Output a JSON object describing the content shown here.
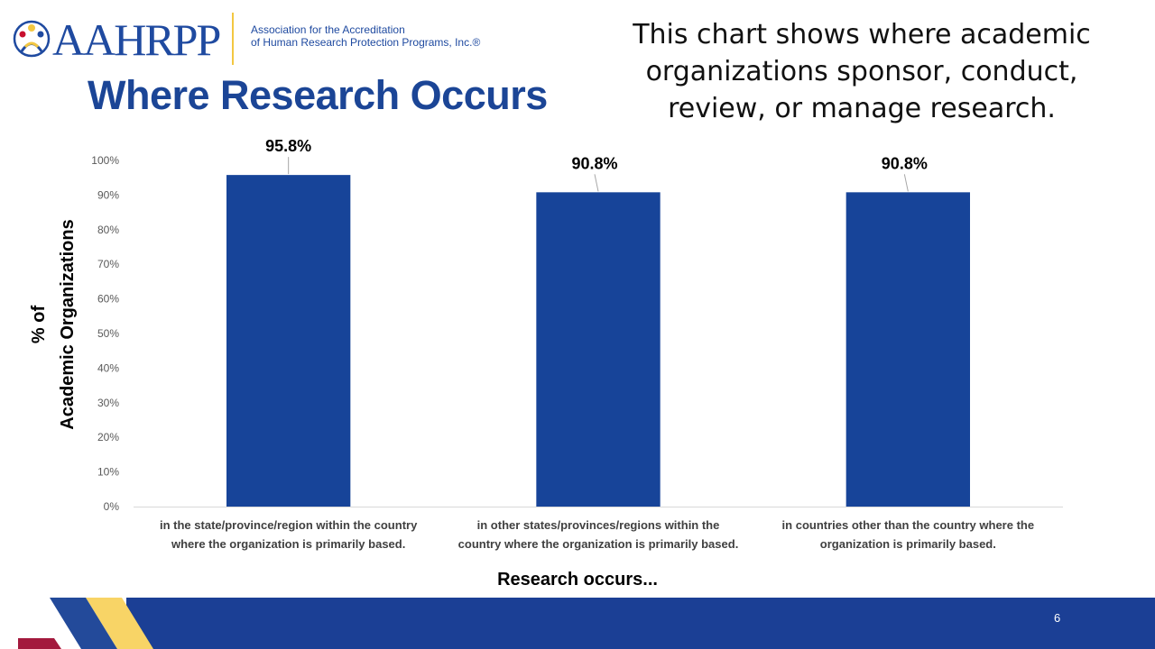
{
  "org": {
    "logo_text": "AAHRPP",
    "full_name_line1": "Association for the Accreditation",
    "full_name_line2": "of Human Research Protection Programs, Inc.®"
  },
  "slide": {
    "title": "Where Research Occurs",
    "description": "This chart shows where academic organizations sponsor, conduct, review, or manage research.",
    "page_number": "6"
  },
  "colors": {
    "bar": "#174499",
    "title": "#1b4596",
    "footer_blue": "#1b3f95",
    "accent_yellow": "#f8d466",
    "accent_blue": "#234a9a",
    "accent_red": "#a3193d"
  },
  "chart_data": {
    "type": "bar",
    "categories": [
      [
        "in the state/province/region within the country",
        "where the organization is primarily based."
      ],
      [
        "in other states/provinces/regions within the",
        "country where the organization is primarily based."
      ],
      [
        "in countries other than the country where the",
        "organization is primarily based."
      ]
    ],
    "values": [
      95.8,
      90.8,
      90.8
    ],
    "data_labels": [
      "95.8%",
      "90.8%",
      "90.8%"
    ],
    "ylabel_lines": [
      "% of",
      "Academic Organizations"
    ],
    "xlabel": "Research occurs...",
    "ylim": [
      0,
      100
    ],
    "yticks": [
      0,
      10,
      20,
      30,
      40,
      50,
      60,
      70,
      80,
      90,
      100
    ],
    "ytick_suffix": "%",
    "grid": false
  }
}
